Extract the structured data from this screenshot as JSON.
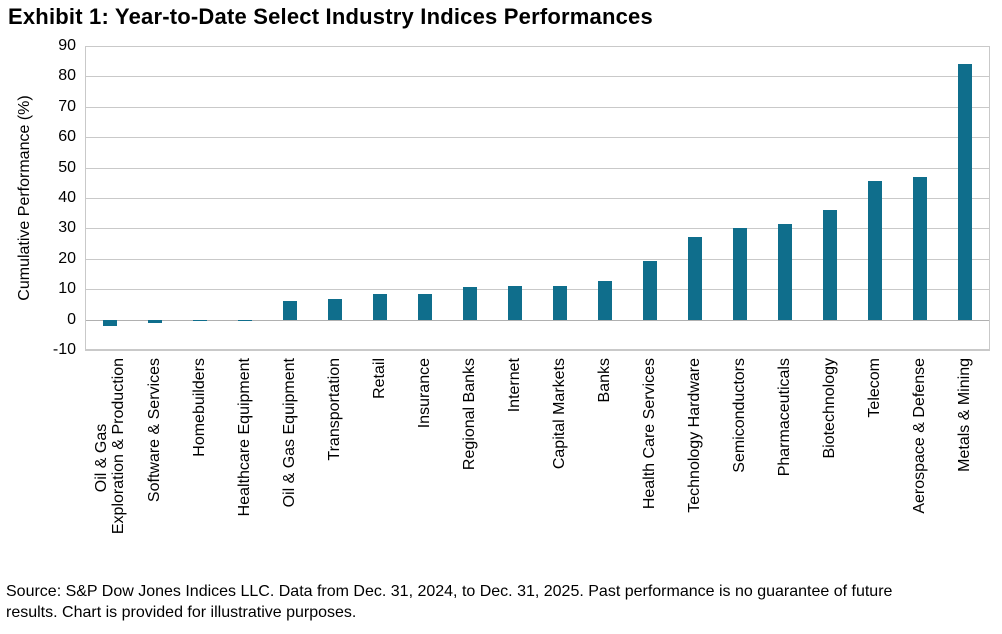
{
  "page": {
    "title": "Exhibit 1: Year-to-Date Select Industry Indices Performances",
    "source_note": "Source: S&P Dow Jones Indices LLC. Data from Dec. 31, 2024, to Dec. 31, 2025. Past performance is no guarantee of future results. Chart is provided for illustrative purposes."
  },
  "chart_data": {
    "type": "bar",
    "title": "Exhibit 1: Year-to-Date Select Industry Indices Performances",
    "xlabel": "",
    "ylabel": "Cumulative Performance (%)",
    "ylim": [
      -10,
      90
    ],
    "yticks": [
      90,
      80,
      70,
      60,
      50,
      40,
      30,
      20,
      10,
      0,
      -10
    ],
    "grid": true,
    "legend": false,
    "bar_color": "#0f6e8c",
    "categories": [
      "Oil & Gas\nExploration & Production",
      "Software & Services",
      "Homebuilders",
      "Healthcare Equipment",
      "Oil & Gas Equipment",
      "Transportation",
      "Retail",
      "Insurance",
      "Regional Banks",
      "Internet",
      "Capital Markets",
      "Banks",
      "Health Care Services",
      "Technology Hardware",
      "Semiconductors",
      "Pharmaceuticals",
      "Biotechnology",
      "Telecom",
      "Aerospace & Defense",
      "Metals & Mining"
    ],
    "values": [
      -2.0,
      -1.0,
      -0.4,
      -0.4,
      6.0,
      6.7,
      8.4,
      8.3,
      10.8,
      11.1,
      11.1,
      12.6,
      19.2,
      27.2,
      30.1,
      31.5,
      36.0,
      45.5,
      46.9,
      84.2
    ]
  }
}
